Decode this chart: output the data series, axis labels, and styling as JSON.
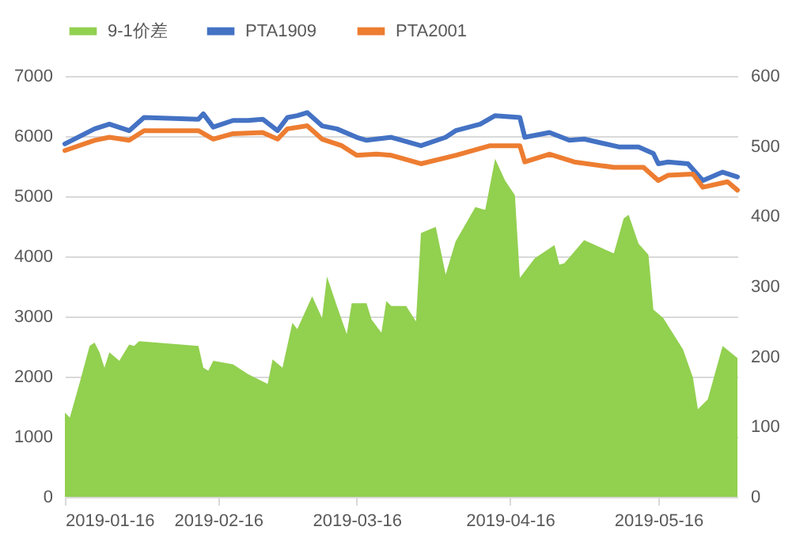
{
  "chart_data": {
    "type": "line",
    "legend": "top",
    "grid": "y",
    "xlim": [
      "2019-01-16",
      "2019-06-01"
    ],
    "xticks": [
      "2019-01-16",
      "2019-02-16",
      "2019-03-16",
      "2019-04-16",
      "2019-05-16"
    ],
    "ylim": [
      0,
      7000
    ],
    "yticks": [
      0,
      1000,
      2000,
      3000,
      4000,
      5000,
      6000,
      7000
    ],
    "y2lim": [
      0,
      600
    ],
    "y2ticks": [
      0,
      100,
      200,
      300,
      400,
      500,
      600
    ],
    "series": [
      {
        "name": "9-1价差",
        "type": "area",
        "axis": "y2",
        "color": "#92d050",
        "x": [
          "2019-01-16",
          "2019-01-17",
          "2019-01-19",
          "2019-01-21",
          "2019-01-22",
          "2019-01-23",
          "2019-01-24",
          "2019-01-25",
          "2019-01-27",
          "2019-01-29",
          "2019-01-30",
          "2019-01-31",
          "2019-02-12",
          "2019-02-13",
          "2019-02-14",
          "2019-02-15",
          "2019-02-19",
          "2019-02-22",
          "2019-02-24",
          "2019-02-26",
          "2019-02-27",
          "2019-03-01",
          "2019-03-03",
          "2019-03-04",
          "2019-03-07",
          "2019-03-09",
          "2019-03-10",
          "2019-03-12",
          "2019-03-14",
          "2019-03-15",
          "2019-03-18",
          "2019-03-19",
          "2019-03-21",
          "2019-03-22",
          "2019-03-23",
          "2019-03-26",
          "2019-03-28",
          "2019-03-29",
          "2019-04-01",
          "2019-04-03",
          "2019-04-05",
          "2019-04-09",
          "2019-04-11",
          "2019-04-13",
          "2019-04-15",
          "2019-04-17",
          "2019-04-18",
          "2019-04-21",
          "2019-04-25",
          "2019-04-26",
          "2019-04-27",
          "2019-05-01",
          "2019-05-07",
          "2019-05-09",
          "2019-05-10",
          "2019-05-12",
          "2019-05-14",
          "2019-05-15",
          "2019-05-17",
          "2019-05-21",
          "2019-05-23",
          "2019-05-24",
          "2019-05-26",
          "2019-05-29",
          "2019-06-01"
        ],
        "values": [
          120,
          113,
          163,
          215,
          220,
          206,
          184,
          206,
          194,
          217,
          215,
          222,
          215,
          184,
          180,
          194,
          189,
          175,
          168,
          161,
          196,
          184,
          248,
          239,
          286,
          255,
          314,
          272,
          232,
          276,
          276,
          253,
          234,
          279,
          272,
          272,
          250,
          376,
          385,
          317,
          364,
          413,
          409,
          482,
          451,
          430,
          312,
          340,
          359,
          331,
          333,
          366,
          347,
          397,
          402,
          361,
          345,
          267,
          255,
          210,
          170,
          125,
          139,
          215,
          198
        ]
      },
      {
        "name": "PTA1909",
        "color": "#4472c4",
        "x": [
          "2019-01-16",
          "2019-01-22",
          "2019-01-25",
          "2019-01-29",
          "2019-02-01",
          "2019-02-12",
          "2019-02-13",
          "2019-02-15",
          "2019-02-19",
          "2019-02-22",
          "2019-02-25",
          "2019-02-28",
          "2019-03-02",
          "2019-03-04",
          "2019-03-06",
          "2019-03-09",
          "2019-03-12",
          "2019-03-16",
          "2019-03-18",
          "2019-03-23",
          "2019-03-29",
          "2019-04-03",
          "2019-04-05",
          "2019-04-10",
          "2019-04-13",
          "2019-04-18",
          "2019-04-19",
          "2019-04-24",
          "2019-04-28",
          "2019-05-01",
          "2019-05-08",
          "2019-05-12",
          "2019-05-15",
          "2019-05-16",
          "2019-05-18",
          "2019-05-22",
          "2019-05-25",
          "2019-05-29",
          "2019-06-01"
        ],
        "values": [
          5870,
          6120,
          6200,
          6090,
          6310,
          6280,
          6370,
          6150,
          6260,
          6260,
          6280,
          6090,
          6310,
          6340,
          6390,
          6170,
          6120,
          5980,
          5930,
          5980,
          5840,
          5980,
          6090,
          6200,
          6340,
          6310,
          5980,
          6060,
          5930,
          5950,
          5820,
          5820,
          5710,
          5540,
          5570,
          5540,
          5260,
          5400,
          5320
        ]
      },
      {
        "name": "PTA2001",
        "color": "#ed7d31",
        "x": [
          "2019-01-16",
          "2019-01-22",
          "2019-01-25",
          "2019-01-29",
          "2019-02-01",
          "2019-02-12",
          "2019-02-15",
          "2019-02-19",
          "2019-02-25",
          "2019-02-28",
          "2019-03-02",
          "2019-03-06",
          "2019-03-09",
          "2019-03-13",
          "2019-03-16",
          "2019-03-20",
          "2019-03-23",
          "2019-03-29",
          "2019-04-05",
          "2019-04-12",
          "2019-04-18",
          "2019-04-19",
          "2019-04-24",
          "2019-04-29",
          "2019-05-07",
          "2019-05-13",
          "2019-05-16",
          "2019-05-18",
          "2019-05-23",
          "2019-05-25",
          "2019-05-30",
          "2019-06-01"
        ],
        "values": [
          5760,
          5930,
          5980,
          5930,
          6090,
          6090,
          5950,
          6040,
          6060,
          5950,
          6120,
          6170,
          5950,
          5840,
          5680,
          5700,
          5680,
          5540,
          5680,
          5840,
          5840,
          5570,
          5700,
          5570,
          5480,
          5480,
          5260,
          5350,
          5370,
          5150,
          5240,
          5100
        ]
      }
    ]
  }
}
